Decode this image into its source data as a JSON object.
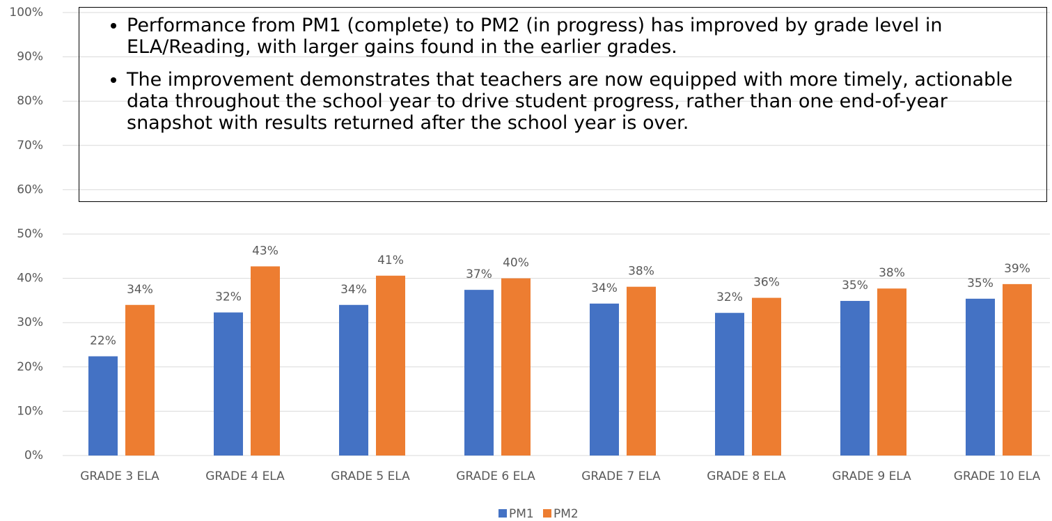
{
  "chart_data": {
    "type": "bar",
    "annotations": [
      "Performance from PM1 (complete) to PM2 (in progress) has improved by grade level in ELA/Reading, with larger gains found in the earlier grades.",
      "The improvement demonstrates that teachers are now equipped with more timely, actionable data throughout the school year to drive student progress, rather than one end-of-year snapshot with results returned after the school year is over."
    ],
    "categories": [
      "GRADE 3 ELA",
      "GRADE 4 ELA",
      "GRADE 5 ELA",
      "GRADE 6 ELA",
      "GRADE 7 ELA",
      "GRADE 8 ELA",
      "GRADE 9 ELA",
      "GRADE 10 ELA"
    ],
    "series": [
      {
        "name": "PM1",
        "color": "#4472c4",
        "values": [
          22.4,
          32.3,
          34.0,
          37.4,
          34.3,
          32.2,
          34.9,
          35.4
        ],
        "value_labels": [
          "22%",
          "32%",
          "34%",
          "37%",
          "34%",
          "32%",
          "35%",
          "35%"
        ]
      },
      {
        "name": "PM2",
        "color": "#ed7d31",
        "values": [
          34.0,
          42.7,
          40.6,
          40.0,
          38.1,
          35.6,
          37.7,
          38.7
        ],
        "value_labels": [
          "34%",
          "43%",
          "41%",
          "40%",
          "38%",
          "36%",
          "38%",
          "39%"
        ]
      }
    ],
    "ylim": [
      0,
      100
    ],
    "yticks": [
      {
        "value": 0,
        "label": "0%"
      },
      {
        "value": 10,
        "label": "10%"
      },
      {
        "value": 20,
        "label": "20%"
      },
      {
        "value": 30,
        "label": "30%"
      },
      {
        "value": 40,
        "label": "40%"
      },
      {
        "value": 50,
        "label": "50%"
      },
      {
        "value": 60,
        "label": "60%"
      },
      {
        "value": 70,
        "label": "70%"
      },
      {
        "value": 80,
        "label": "80%"
      },
      {
        "value": 90,
        "label": "90%"
      },
      {
        "value": 100,
        "label": "100%"
      }
    ],
    "grid": true,
    "legend": "bottom"
  }
}
